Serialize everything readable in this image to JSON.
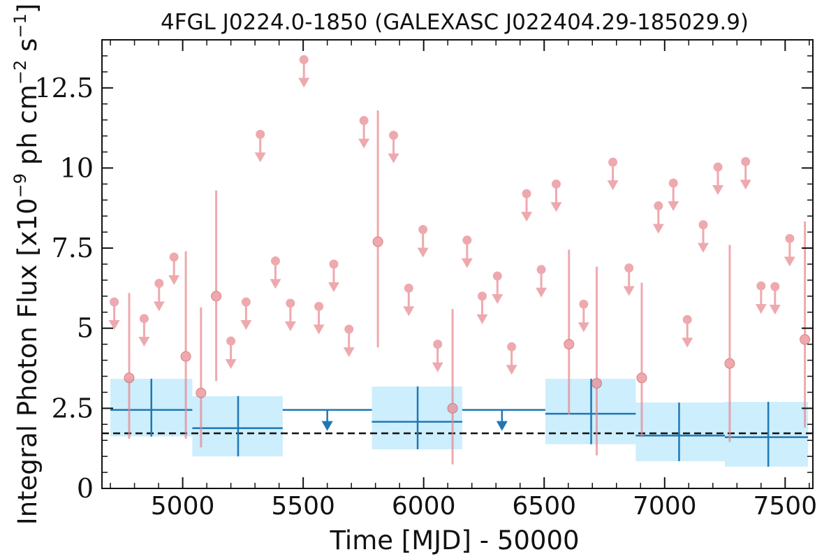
{
  "chart_data": {
    "type": "scatter",
    "title": "4FGL J0224.0-1850 (GALEXASC J022404.29-185029.9)",
    "xlabel": "Time [MJD] - 50000",
    "ylabel": "Integral Photon Flux [x10",
    "ylabel_exp1": "−9",
    "ylabel_mid": " ph cm",
    "ylabel_exp2": "−2",
    "ylabel_mid2": " s",
    "ylabel_exp3": "−1",
    "ylabel_end": "]",
    "xlim": [
      4665,
      7615
    ],
    "ylim": [
      0,
      14
    ],
    "x_ticks": [
      5000,
      5500,
      6000,
      6500,
      7000,
      7500
    ],
    "x_tick_labels": [
      "5000",
      "5500",
      "6000",
      "6500",
      "7000",
      "7500"
    ],
    "y_ticks": [
      0,
      2.5,
      5,
      7.5,
      10,
      12.5
    ],
    "y_tick_labels": [
      "0",
      "2.5",
      "5",
      "7.5",
      "10",
      "12.5"
    ],
    "grid": false,
    "reference_line": {
      "y": 1.72,
      "style": "dashed",
      "color": "#111111"
    },
    "colors": {
      "short_bins": "#e8868c",
      "long_bins": "#1f77b4",
      "long_band": "#cdeefc"
    },
    "short_bin_detections": [
      {
        "x": 4778,
        "y": 3.45,
        "lo": 1.55,
        "hi": 6.1
      },
      {
        "x": 5013,
        "y": 4.12,
        "lo": 1.55,
        "hi": 7.4
      },
      {
        "x": 5076,
        "y": 2.98,
        "lo": 1.28,
        "hi": 5.65
      },
      {
        "x": 5139,
        "y": 6.0,
        "lo": 3.35,
        "hi": 9.3
      },
      {
        "x": 5810,
        "y": 7.7,
        "lo": 4.4,
        "hi": 11.8
      },
      {
        "x": 6120,
        "y": 2.5,
        "lo": 0.75,
        "hi": 5.6
      },
      {
        "x": 6603,
        "y": 4.5,
        "lo": 2.3,
        "hi": 7.45
      },
      {
        "x": 6718,
        "y": 3.28,
        "lo": 1.03,
        "hi": 6.92
      },
      {
        "x": 6905,
        "y": 3.45,
        "lo": 1.6,
        "hi": 6.42
      },
      {
        "x": 7270,
        "y": 3.9,
        "lo": 1.45,
        "hi": 7.6
      },
      {
        "x": 7582,
        "y": 4.65,
        "lo": 1.9,
        "hi": 8.33
      }
    ],
    "short_bin_upper_limits": [
      {
        "x": 4716,
        "y": 5.82
      },
      {
        "x": 4840,
        "y": 5.3
      },
      {
        "x": 4902,
        "y": 6.4
      },
      {
        "x": 4964,
        "y": 7.22
      },
      {
        "x": 5200,
        "y": 4.6
      },
      {
        "x": 5263,
        "y": 5.82
      },
      {
        "x": 5322,
        "y": 11.05
      },
      {
        "x": 5385,
        "y": 7.1
      },
      {
        "x": 5447,
        "y": 5.78
      },
      {
        "x": 5503,
        "y": 13.38
      },
      {
        "x": 5565,
        "y": 5.68
      },
      {
        "x": 5627,
        "y": 7.0
      },
      {
        "x": 5690,
        "y": 4.97
      },
      {
        "x": 5752,
        "y": 11.48
      },
      {
        "x": 5875,
        "y": 11.02
      },
      {
        "x": 5938,
        "y": 6.25
      },
      {
        "x": 5997,
        "y": 8.08
      },
      {
        "x": 6058,
        "y": 4.5
      },
      {
        "x": 6180,
        "y": 7.75
      },
      {
        "x": 6243,
        "y": 6.0
      },
      {
        "x": 6306,
        "y": 6.63
      },
      {
        "x": 6365,
        "y": 4.42
      },
      {
        "x": 6427,
        "y": 9.2
      },
      {
        "x": 6488,
        "y": 6.83
      },
      {
        "x": 6550,
        "y": 9.5
      },
      {
        "x": 6664,
        "y": 5.75
      },
      {
        "x": 6785,
        "y": 10.18
      },
      {
        "x": 6852,
        "y": 6.88
      },
      {
        "x": 6974,
        "y": 8.82
      },
      {
        "x": 7036,
        "y": 9.53
      },
      {
        "x": 7094,
        "y": 5.27
      },
      {
        "x": 7160,
        "y": 8.23
      },
      {
        "x": 7221,
        "y": 10.03
      },
      {
        "x": 7336,
        "y": 10.2
      },
      {
        "x": 7400,
        "y": 6.32
      },
      {
        "x": 7458,
        "y": 6.3
      },
      {
        "x": 7519,
        "y": 7.8
      }
    ],
    "long_bin_detections": [
      {
        "x": 4870,
        "xlo": 4700,
        "xhi": 5040,
        "y": 2.45,
        "lo": 1.62,
        "hi": 3.42
      },
      {
        "x": 5230,
        "xlo": 5040,
        "xhi": 5415,
        "y": 1.88,
        "lo": 1.0,
        "hi": 2.88
      },
      {
        "x": 5975,
        "xlo": 5785,
        "xhi": 6160,
        "y": 2.08,
        "lo": 1.22,
        "hi": 3.18
      },
      {
        "x": 6695,
        "xlo": 6505,
        "xhi": 6880,
        "y": 2.33,
        "lo": 1.38,
        "hi": 3.42
      },
      {
        "x": 7060,
        "xlo": 6880,
        "xhi": 7250,
        "y": 1.65,
        "lo": 0.85,
        "hi": 2.68
      },
      {
        "x": 7430,
        "xlo": 7250,
        "xhi": 7595,
        "y": 1.6,
        "lo": 0.68,
        "hi": 2.7
      }
    ],
    "long_bin_upper_limits": [
      {
        "x": 5600,
        "xlo": 5415,
        "xhi": 5785,
        "y": 2.45
      },
      {
        "x": 6325,
        "xlo": 6160,
        "xhi": 6505,
        "y": 2.45
      }
    ]
  }
}
